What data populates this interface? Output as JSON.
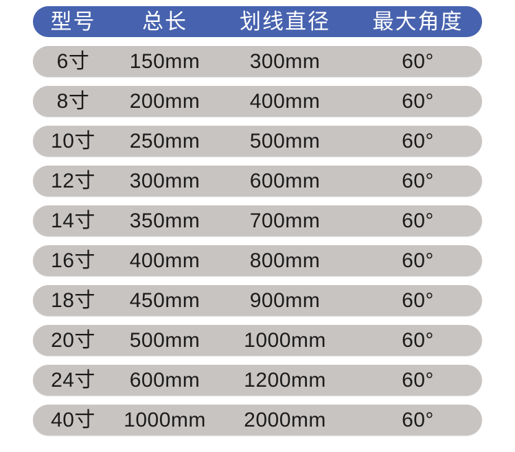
{
  "chart_data": {
    "type": "table",
    "title": "",
    "columns": [
      "型号",
      "总长",
      "划线直径",
      "最大角度"
    ],
    "rows": [
      [
        "6寸",
        "150mm",
        "300mm",
        "60°"
      ],
      [
        "8寸",
        "200mm",
        "400mm",
        "60°"
      ],
      [
        "10寸",
        "250mm",
        "500mm",
        "60°"
      ],
      [
        "12寸",
        "300mm",
        "600mm",
        "60°"
      ],
      [
        "14寸",
        "350mm",
        "700mm",
        "60°"
      ],
      [
        "16寸",
        "400mm",
        "800mm",
        "60°"
      ],
      [
        "18寸",
        "450mm",
        "900mm",
        "60°"
      ],
      [
        "20寸",
        "500mm",
        "1000mm",
        "60°"
      ],
      [
        "24寸",
        "600mm",
        "1200mm",
        "60°"
      ],
      [
        "40寸",
        "1000mm",
        "2000mm",
        "60°"
      ]
    ],
    "layout": {
      "legend": "none",
      "grid": "off",
      "row_style": "rounded-pill",
      "header_position": "top"
    }
  },
  "colors": {
    "header_bg": "#4762AE",
    "header_text": "#FFFFFF",
    "row_bg": "#C8C4C2",
    "row_text": "#1B1B1B",
    "page_bg": "#FFFFFF"
  }
}
